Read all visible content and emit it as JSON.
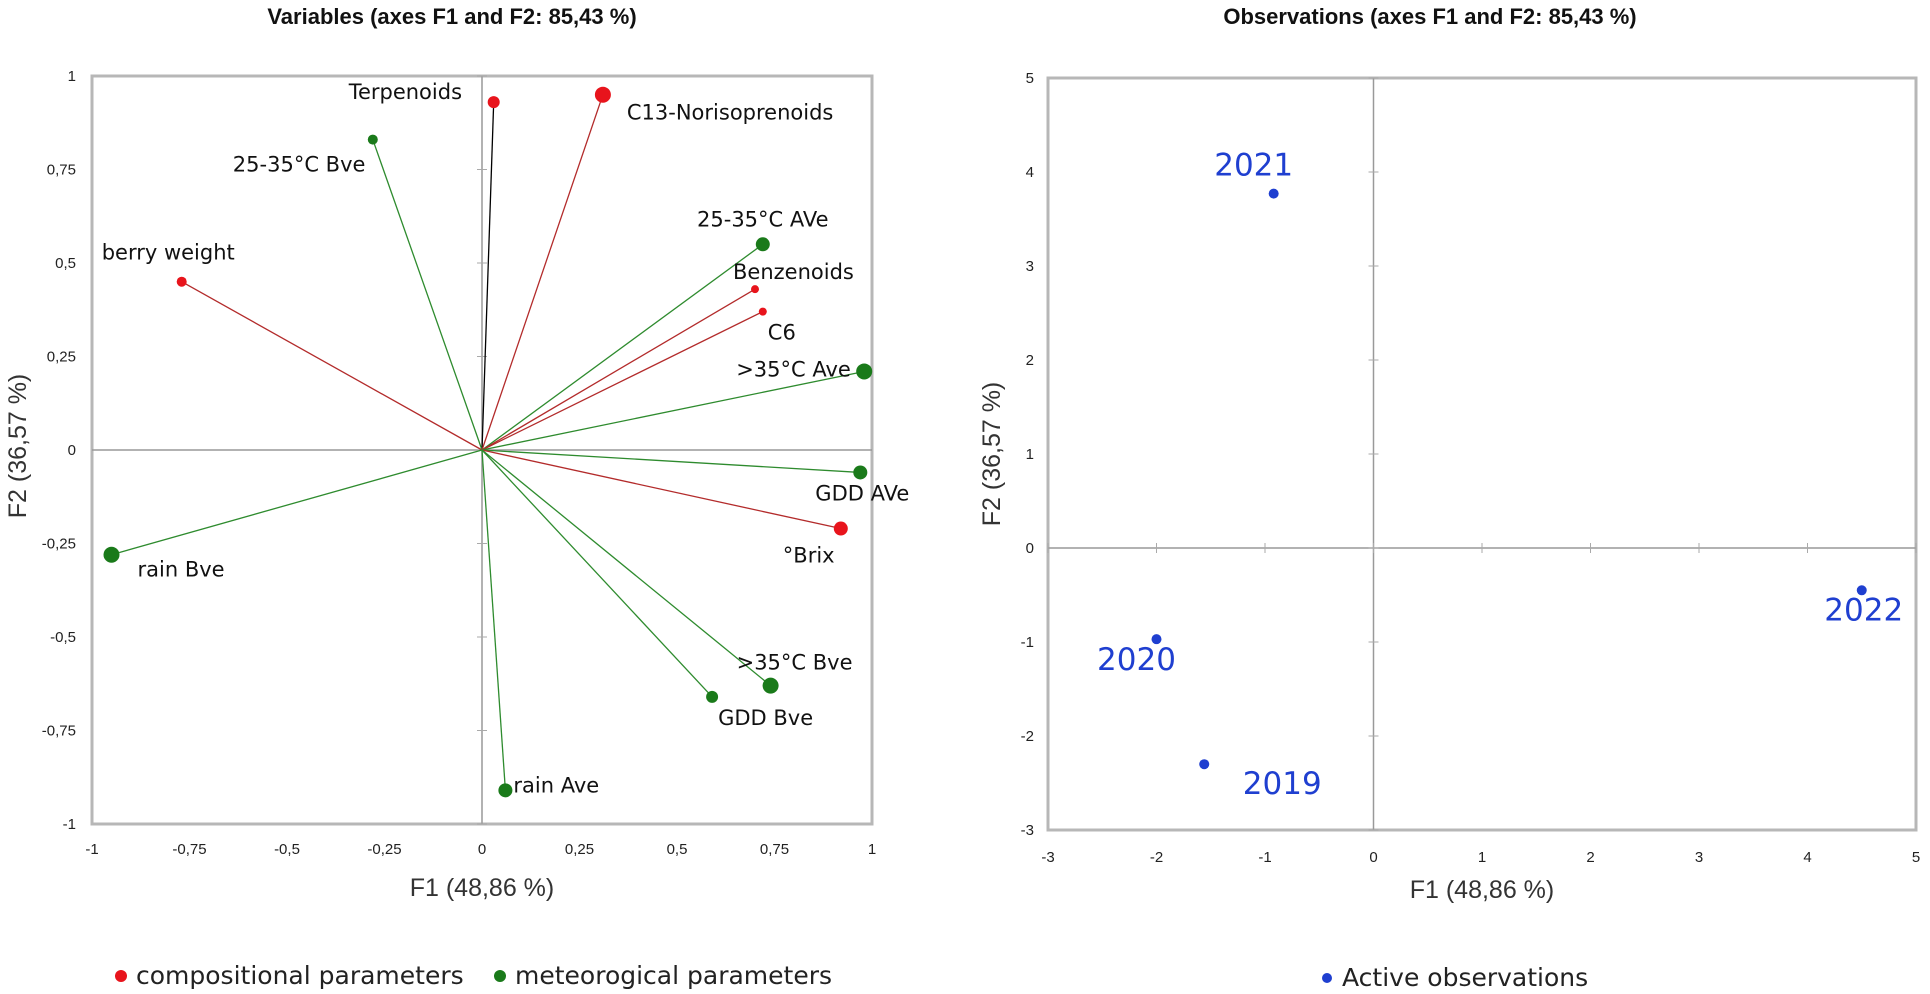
{
  "colors": {
    "compositional": "#e8141c",
    "meteorological": "#1a7a1a",
    "compositional_line": "#b32b2b",
    "meteorological_line": "#2e8b2e",
    "observation": "#1f3fd0",
    "axis_box": "#b7b7b7"
  },
  "chart_data": [
    {
      "type": "scatter",
      "title": "Variables (axes F1 and F2: 85,43 %)",
      "xlabel": "F1 (48,86 %)",
      "ylabel": "F2 (36,57 %)",
      "xlim": [
        -1,
        1
      ],
      "ylim": [
        -1,
        1
      ],
      "xticks": [
        "-1",
        "-0,75",
        "-0,5",
        "-0,25",
        "0",
        "0,25",
        "0,5",
        "0,75",
        "1"
      ],
      "yticks": [
        "-1",
        "-0,75",
        "-0,5",
        "-0,25",
        "0",
        "0,25",
        "0,5",
        "0,75",
        "1"
      ],
      "legend": [
        {
          "label": "compositional parameters",
          "group": "compositional"
        },
        {
          "label": "meteorogical parameters",
          "group": "meteorological"
        }
      ],
      "series": [
        {
          "name": "Terpenoids",
          "group": "compositional",
          "x": 0.03,
          "y": 0.93,
          "size": 6,
          "line": "#000000",
          "anchor": "left"
        },
        {
          "name": "C13-Norisoprenoids",
          "group": "compositional",
          "x": 0.31,
          "y": 0.95,
          "size": 8,
          "anchor": "right"
        },
        {
          "name": "25-35°C Bve",
          "group": "meteorological",
          "x": -0.28,
          "y": 0.83,
          "size": 5,
          "anchor": "left"
        },
        {
          "name": "25-35°C AVe",
          "group": "meteorological",
          "x": 0.72,
          "y": 0.55,
          "size": 7,
          "anchor": "above"
        },
        {
          "name": "berry weight",
          "group": "compositional",
          "x": -0.77,
          "y": 0.45,
          "size": 5,
          "anchor": "above-left"
        },
        {
          "name": "Benzenoids",
          "group": "compositional",
          "x": 0.7,
          "y": 0.43,
          "size": 4,
          "anchor": "above-right"
        },
        {
          "name": "C6",
          "group": "compositional",
          "x": 0.72,
          "y": 0.37,
          "size": 4,
          "anchor": "below-right"
        },
        {
          "name": ">35°C Ave",
          "group": "meteorological",
          "x": 0.98,
          "y": 0.21,
          "size": 8,
          "anchor": "left"
        },
        {
          "name": "GDD AVe",
          "group": "meteorological",
          "x": 0.97,
          "y": -0.06,
          "size": 7,
          "anchor": "below"
        },
        {
          "name": "°Brix",
          "group": "compositional",
          "x": 0.92,
          "y": -0.21,
          "size": 7,
          "anchor": "below-left"
        },
        {
          "name": "rain Bve",
          "group": "meteorological",
          "x": -0.95,
          "y": -0.28,
          "size": 8,
          "anchor": "right"
        },
        {
          "name": ">35°C Bve",
          "group": "meteorological",
          "x": 0.74,
          "y": -0.63,
          "size": 8,
          "anchor": "above"
        },
        {
          "name": "GDD Bve",
          "group": "meteorological",
          "x": 0.59,
          "y": -0.66,
          "size": 6,
          "anchor": "below-right"
        },
        {
          "name": "rain Ave",
          "group": "meteorological",
          "x": 0.06,
          "y": -0.91,
          "size": 7,
          "anchor": "right"
        }
      ]
    },
    {
      "type": "scatter",
      "title": "Observations (axes F1 and F2: 85,43 %)",
      "xlabel": "F1 (48,86 %)",
      "ylabel": "F2 (36,57 %)",
      "xlim": [
        -3,
        5
      ],
      "ylim": [
        -3,
        5
      ],
      "xticks": [
        "-3",
        "-2",
        "-1",
        "0",
        "1",
        "2",
        "3",
        "4",
        "5"
      ],
      "yticks": [
        "-3",
        "-2",
        "-1",
        "0",
        "1",
        "2",
        "3",
        "4",
        "5"
      ],
      "legend": [
        {
          "label": "Active observations",
          "group": "observation"
        }
      ],
      "series": [
        {
          "name": "2021",
          "x": -0.92,
          "y": 3.77,
          "anchor": "above"
        },
        {
          "name": "2020",
          "x": -2.0,
          "y": -0.97,
          "anchor": "below"
        },
        {
          "name": "2022",
          "x": 4.5,
          "y": -0.45,
          "anchor": "below"
        },
        {
          "name": "2019",
          "x": -1.56,
          "y": -2.3,
          "anchor": "below-right"
        }
      ]
    }
  ]
}
